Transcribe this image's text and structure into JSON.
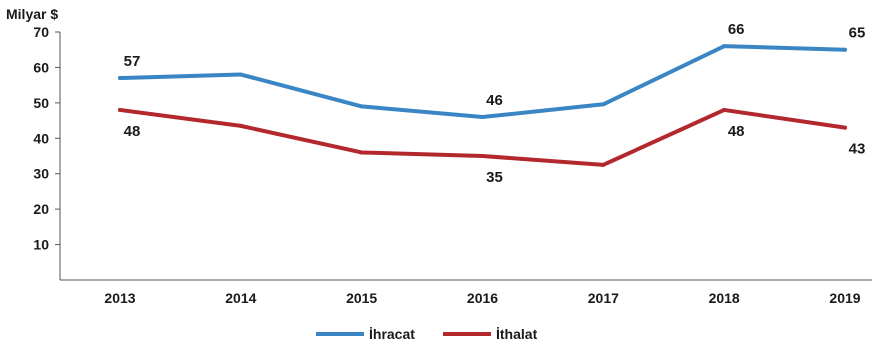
{
  "chart_data": {
    "type": "line",
    "unit_label": "Milyar $",
    "categories": [
      "2013",
      "2014",
      "2015",
      "2016",
      "2017",
      "2018",
      "2019"
    ],
    "ylim": [
      0,
      70
    ],
    "yticks": [
      10,
      20,
      30,
      40,
      50,
      60,
      70
    ],
    "grid": false,
    "legend_position": "bottom",
    "series": [
      {
        "name": "İhracat",
        "color": "#3a86c4",
        "values": [
          57,
          58,
          49,
          46,
          49.6,
          66,
          65
        ],
        "data_labels": [
          {
            "index": 0,
            "text": "57",
            "position": "above"
          },
          {
            "index": 3,
            "text": "46",
            "position": "above"
          },
          {
            "index": 5,
            "text": "66",
            "position": "above"
          },
          {
            "index": 6,
            "text": "65",
            "position": "above"
          }
        ]
      },
      {
        "name": "İthalat",
        "color": "#b3282d",
        "values": [
          48,
          43.5,
          36,
          35,
          32.5,
          48,
          43
        ],
        "data_labels": [
          {
            "index": 0,
            "text": "48",
            "position": "below"
          },
          {
            "index": 3,
            "text": "35",
            "position": "below"
          },
          {
            "index": 5,
            "text": "48",
            "position": "below"
          },
          {
            "index": 6,
            "text": "43",
            "position": "below"
          }
        ]
      }
    ]
  }
}
